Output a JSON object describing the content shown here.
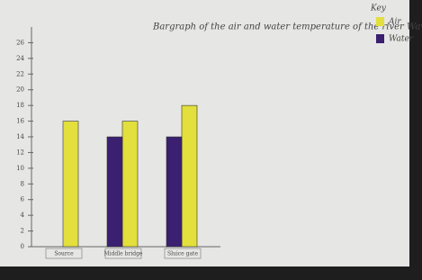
{
  "chart_data": {
    "type": "bar",
    "title": "Bargraph of the air and water temperature of the river Waveney",
    "categories": [
      "Source",
      "Middle bridge",
      "Sluice gate"
    ],
    "series": [
      {
        "name": "Air",
        "color": "#e3df3c",
        "values": [
          16,
          16,
          18
        ]
      },
      {
        "name": "Water",
        "color": "#3b1f70",
        "values": [
          null,
          14,
          14
        ]
      }
    ],
    "legend_title": "Key",
    "ylim": [
      0,
      28
    ],
    "yticks": [
      0,
      2,
      4,
      6,
      8,
      10,
      12,
      14,
      16,
      18,
      20,
      22,
      24,
      26
    ]
  }
}
